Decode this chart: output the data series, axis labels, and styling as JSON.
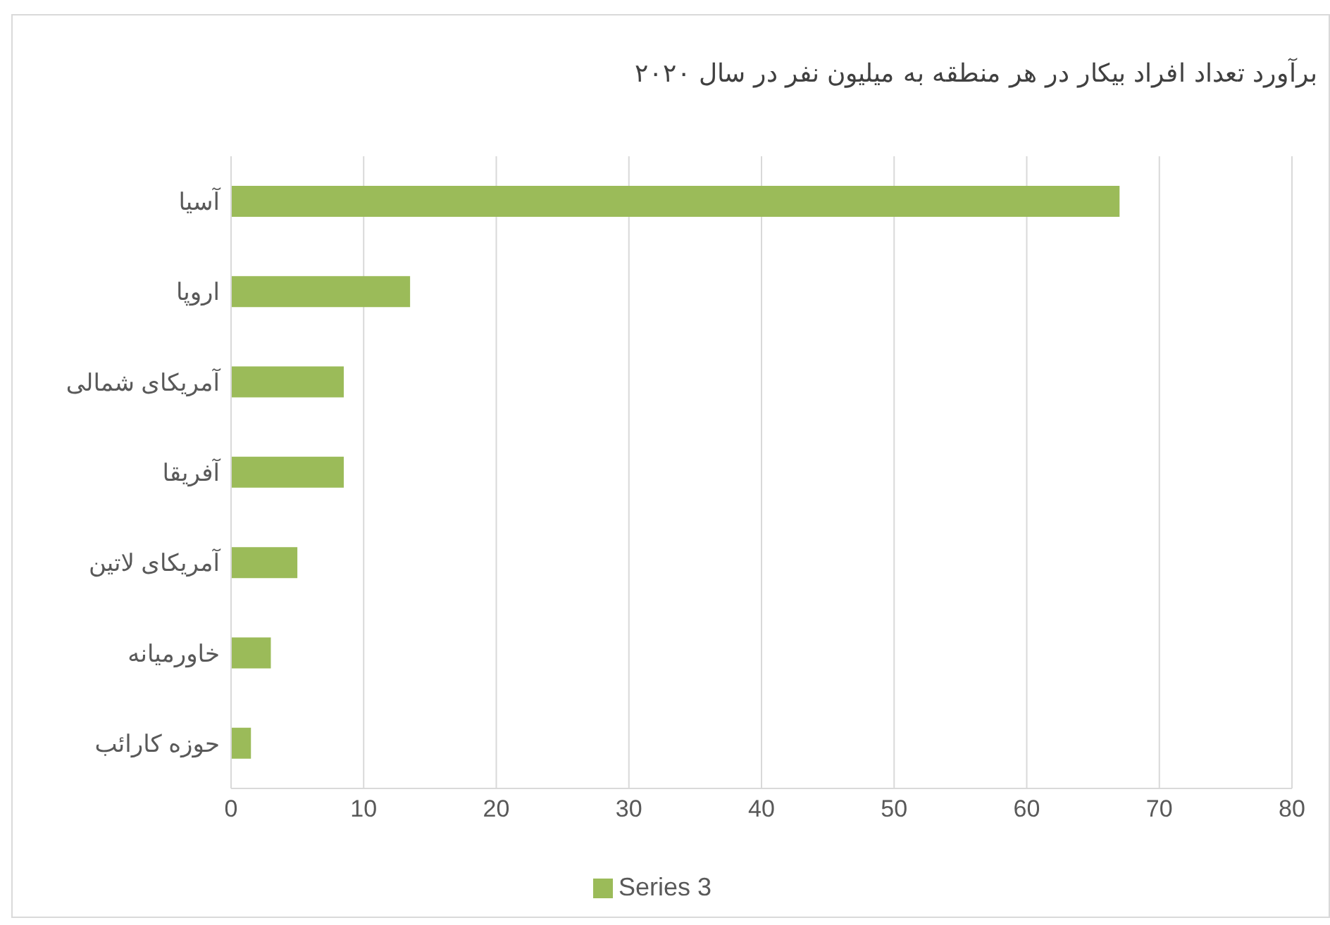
{
  "chart_data": {
    "type": "bar",
    "orientation": "horizontal",
    "title": "برآورد تعداد افراد بیکار در هر منطقه به میلیون نفر در سال ۲۰۲۰",
    "categories": [
      "آسیا",
      "اروپا",
      "آمریکای شمالی",
      "آفریقا",
      "آمریکای لاتین",
      "خاورمیانه",
      "حوزه کارائب"
    ],
    "series": [
      {
        "name": "Series 3",
        "color": "#9bbb59",
        "values": [
          67,
          13.5,
          8.5,
          8.5,
          5,
          3,
          1.5
        ]
      }
    ],
    "xlim": [
      0,
      80
    ],
    "xticks": [
      0,
      10,
      20,
      30,
      40,
      50,
      60,
      70,
      80
    ],
    "grid": "x",
    "legend": "bottom"
  }
}
